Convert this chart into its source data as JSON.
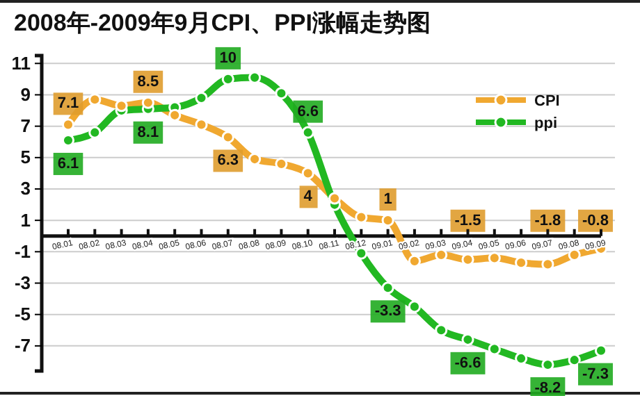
{
  "chart_data": {
    "type": "line",
    "title": "2008年-2009年9月CPI、PPI涨幅走势图",
    "categories": [
      "08.01",
      "08.02",
      "08.03",
      "08.04",
      "08.05",
      "08.06",
      "08.07",
      "08.08",
      "08.09",
      "08.10",
      "08.11",
      "08.12",
      "09.01",
      "09.02",
      "09.03",
      "09.04",
      "09.05",
      "09.06",
      "09.07",
      "09.08",
      "09.09"
    ],
    "series": [
      {
        "name": "CPI",
        "color": "#f0a830",
        "values": [
          7.1,
          8.7,
          8.3,
          8.5,
          7.7,
          7.1,
          6.3,
          4.9,
          4.6,
          4,
          2.4,
          1.2,
          1,
          -1.6,
          -1.2,
          -1.5,
          -1.4,
          -1.7,
          -1.8,
          -1.2,
          -0.8
        ],
        "value_labels": [
          "7.1",
          null,
          null,
          "8.5",
          null,
          null,
          "6.3",
          null,
          null,
          "4",
          null,
          null,
          "1",
          null,
          null,
          "-1.5",
          null,
          null,
          "-1.8",
          null,
          "-0.8"
        ]
      },
      {
        "name": "ppi",
        "color": "#22b822",
        "values": [
          6.1,
          6.6,
          8,
          8.1,
          8.2,
          8.8,
          10,
          10.1,
          9.1,
          6.6,
          2,
          -1.1,
          -3.3,
          -4.5,
          -6,
          -6.6,
          -7.2,
          -7.8,
          -8.2,
          -7.9,
          -7.3
        ],
        "value_labels": [
          "6.1",
          null,
          null,
          "8.1",
          null,
          null,
          "10",
          null,
          null,
          "6.6",
          null,
          null,
          "-3.3",
          null,
          null,
          "-6.6",
          null,
          null,
          "-8.2",
          null,
          "-7.3"
        ]
      }
    ],
    "ylim": [
      -8.6,
      11.5
    ],
    "yticks": [
      11,
      9,
      7,
      5,
      3,
      1,
      -1,
      -3,
      -5,
      -7
    ],
    "grid": "y",
    "legend": "top right",
    "marker": "circle",
    "line_style": "solid"
  }
}
